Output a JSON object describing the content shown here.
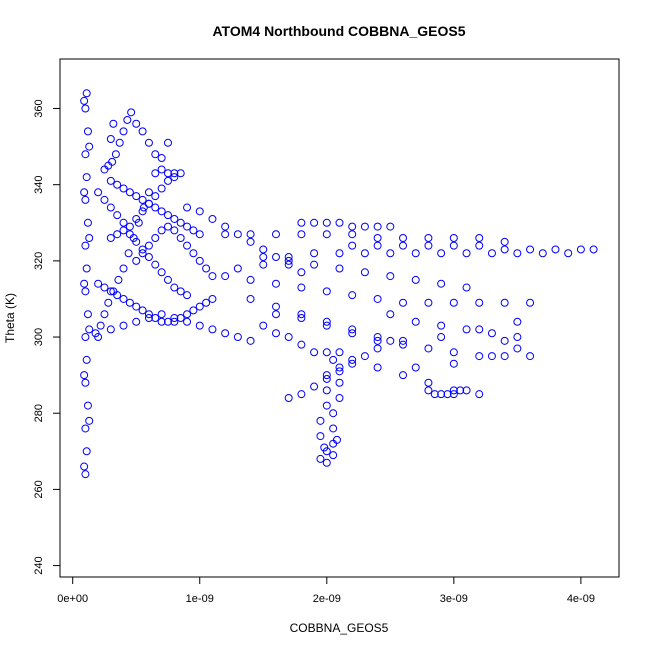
{
  "chart_data": {
    "type": "scatter",
    "title": "ATOM4 Northbound COBBNA_GEOS5",
    "xlabel": "COBBNA_GEOS5",
    "ylabel": "Theta (K)",
    "xlim": [
      -1e-10,
      4.3e-09
    ],
    "ylim": [
      237,
      373
    ],
    "x_ticks": [
      0,
      1e-09,
      2e-09,
      3e-09,
      4e-09
    ],
    "x_tick_labels": [
      "0e+00",
      "1e-09",
      "2e-09",
      "3e-09",
      "4e-09"
    ],
    "y_ticks": [
      240,
      260,
      280,
      300,
      320,
      340,
      360
    ],
    "y_tick_labels": [
      "240",
      "260",
      "280",
      "300",
      "320",
      "340",
      "360"
    ],
    "grid": false,
    "marker": "open-circle",
    "color": "#0000ff",
    "series": [
      {
        "points": [
          [
            1e-10,
            264
          ],
          [
            1.1e-10,
            270
          ],
          [
            1e-10,
            276
          ],
          [
            1.2e-10,
            282
          ],
          [
            1e-10,
            288
          ],
          [
            1.1e-10,
            294
          ],
          [
            1e-10,
            300
          ],
          [
            1.2e-10,
            306
          ],
          [
            1e-10,
            312
          ],
          [
            1.1e-10,
            318
          ],
          [
            1e-10,
            324
          ],
          [
            1.2e-10,
            330
          ],
          [
            1e-10,
            336
          ],
          [
            1.1e-10,
            342
          ],
          [
            1e-10,
            348
          ],
          [
            1.2e-10,
            354
          ],
          [
            1e-10,
            360
          ],
          [
            1.1e-10,
            364
          ],
          [
            9e-11,
            266
          ],
          [
            1.3e-10,
            278
          ],
          [
            9e-11,
            290
          ],
          [
            1.3e-10,
            302
          ],
          [
            9e-11,
            314
          ],
          [
            1.3e-10,
            326
          ],
          [
            9e-11,
            338
          ],
          [
            1.3e-10,
            350
          ],
          [
            9e-11,
            362
          ],
          [
            1.8e-10,
            301
          ],
          [
            2.2e-10,
            303
          ],
          [
            2.5e-10,
            306
          ],
          [
            2.8e-10,
            309
          ],
          [
            3.2e-10,
            312
          ],
          [
            3.6e-10,
            315
          ],
          [
            4e-10,
            318
          ],
          [
            4.4e-10,
            322
          ],
          [
            4.8e-10,
            326
          ],
          [
            5.2e-10,
            330
          ],
          [
            5.6e-10,
            334
          ],
          [
            6e-10,
            338
          ],
          [
            6.5e-10,
            343
          ],
          [
            7e-10,
            347
          ],
          [
            7.5e-10,
            351
          ],
          [
            2.5e-10,
            344
          ],
          [
            2.8e-10,
            345
          ],
          [
            3.1e-10,
            346
          ],
          [
            3.4e-10,
            348
          ],
          [
            3.7e-10,
            351
          ],
          [
            4e-10,
            354
          ],
          [
            4.3e-10,
            357
          ],
          [
            4.6e-10,
            359
          ],
          [
            3e-10,
            352
          ],
          [
            3.2e-10,
            356
          ],
          [
            5e-10,
            356
          ],
          [
            5.5e-10,
            354
          ],
          [
            6e-10,
            351
          ],
          [
            6.5e-10,
            348
          ],
          [
            7e-10,
            344
          ],
          [
            7.5e-10,
            343
          ],
          [
            8e-10,
            343
          ],
          [
            8.5e-10,
            343
          ],
          [
            2e-10,
            338
          ],
          [
            2.5e-10,
            336
          ],
          [
            3e-10,
            334
          ],
          [
            3.5e-10,
            332
          ],
          [
            4e-10,
            330
          ],
          [
            4.5e-10,
            329
          ],
          [
            5e-10,
            331
          ],
          [
            5.5e-10,
            333
          ],
          [
            6e-10,
            335
          ],
          [
            6.5e-10,
            337
          ],
          [
            7e-10,
            339
          ],
          [
            7.5e-10,
            341
          ],
          [
            8e-10,
            342
          ],
          [
            2e-10,
            314
          ],
          [
            2.5e-10,
            313
          ],
          [
            3e-10,
            312
          ],
          [
            3.5e-10,
            311
          ],
          [
            4e-10,
            310
          ],
          [
            4.5e-10,
            309
          ],
          [
            5e-10,
            308
          ],
          [
            5.5e-10,
            307
          ],
          [
            6e-10,
            306
          ],
          [
            6.5e-10,
            305
          ],
          [
            7e-10,
            304
          ],
          [
            7.5e-10,
            304
          ],
          [
            8e-10,
            304
          ],
          [
            8.5e-10,
            305
          ],
          [
            9e-10,
            306
          ],
          [
            9.5e-10,
            307
          ],
          [
            1e-09,
            308
          ],
          [
            1.05e-09,
            309
          ],
          [
            1.1e-09,
            310
          ],
          [
            2e-10,
            300
          ],
          [
            3e-10,
            302
          ],
          [
            4e-10,
            303
          ],
          [
            5e-10,
            304
          ],
          [
            6e-10,
            305
          ],
          [
            7e-10,
            306
          ],
          [
            8e-10,
            305
          ],
          [
            9e-10,
            304
          ],
          [
            1e-09,
            303
          ],
          [
            1.1e-09,
            302
          ],
          [
            1.2e-09,
            301
          ],
          [
            1.3e-09,
            300
          ],
          [
            1.4e-09,
            299
          ],
          [
            5e-10,
            320
          ],
          [
            5.5e-10,
            322
          ],
          [
            6e-10,
            324
          ],
          [
            6.5e-10,
            326
          ],
          [
            7e-10,
            328
          ],
          [
            7.5e-10,
            329
          ],
          [
            8e-10,
            328
          ],
          [
            8.5e-10,
            326
          ],
          [
            9e-10,
            324
          ],
          [
            9.5e-10,
            322
          ],
          [
            1e-09,
            320
          ],
          [
            1.05e-09,
            318
          ],
          [
            1.1e-09,
            316
          ],
          [
            9e-10,
            334
          ],
          [
            1e-09,
            333
          ],
          [
            1.1e-09,
            331
          ],
          [
            1.2e-09,
            329
          ],
          [
            1.3e-09,
            327
          ],
          [
            1.4e-09,
            325
          ],
          [
            1.5e-09,
            323
          ],
          [
            1.6e-09,
            321
          ],
          [
            1.7e-09,
            319
          ],
          [
            1.8e-09,
            317
          ],
          [
            1.2e-09,
            327
          ],
          [
            1.4e-09,
            327
          ],
          [
            1.6e-09,
            327
          ],
          [
            1.8e-09,
            327
          ],
          [
            2e-09,
            327
          ],
          [
            2.2e-09,
            327
          ],
          [
            2.4e-09,
            326
          ],
          [
            2.6e-09,
            326
          ],
          [
            2.8e-09,
            326
          ],
          [
            3e-09,
            326
          ],
          [
            3.2e-09,
            326
          ],
          [
            3.4e-09,
            325
          ],
          [
            1.8e-09,
            330
          ],
          [
            1.9e-09,
            330
          ],
          [
            2e-09,
            330
          ],
          [
            2.1e-09,
            330
          ],
          [
            2.2e-09,
            329
          ],
          [
            2.3e-09,
            329
          ],
          [
            2.4e-09,
            329
          ],
          [
            2.5e-09,
            329
          ],
          [
            2.2e-09,
            324
          ],
          [
            2.4e-09,
            324
          ],
          [
            2.6e-09,
            324
          ],
          [
            2.8e-09,
            324
          ],
          [
            3e-09,
            324
          ],
          [
            3.2e-09,
            324
          ],
          [
            3.4e-09,
            323
          ],
          [
            3.6e-09,
            323
          ],
          [
            3.8e-09,
            323
          ],
          [
            4e-09,
            323
          ],
          [
            4.1e-09,
            323
          ],
          [
            1.5e-09,
            321
          ],
          [
            1.7e-09,
            321
          ],
          [
            1.9e-09,
            322
          ],
          [
            2.1e-09,
            322
          ],
          [
            2.3e-09,
            322
          ],
          [
            2.5e-09,
            322
          ],
          [
            2.7e-09,
            322
          ],
          [
            2.9e-09,
            322
          ],
          [
            3.1e-09,
            322
          ],
          [
            3.3e-09,
            322
          ],
          [
            3.5e-09,
            322
          ],
          [
            3.7e-09,
            322
          ],
          [
            3.9e-09,
            322
          ],
          [
            1.2e-09,
            316
          ],
          [
            1.4e-09,
            315
          ],
          [
            1.6e-09,
            314
          ],
          [
            1.8e-09,
            313
          ],
          [
            2e-09,
            312
          ],
          [
            2.2e-09,
            311
          ],
          [
            2.4e-09,
            310
          ],
          [
            2.6e-09,
            309
          ],
          [
            2.8e-09,
            309
          ],
          [
            3e-09,
            309
          ],
          [
            3.2e-09,
            309
          ],
          [
            3.4e-09,
            309
          ],
          [
            3.6e-09,
            309
          ],
          [
            1.3e-09,
            318
          ],
          [
            1.5e-09,
            319
          ],
          [
            1.7e-09,
            320
          ],
          [
            1.9e-09,
            319
          ],
          [
            2.1e-09,
            318
          ],
          [
            2.3e-09,
            317
          ],
          [
            2.5e-09,
            316
          ],
          [
            2.7e-09,
            315
          ],
          [
            2.9e-09,
            314
          ],
          [
            3.1e-09,
            313
          ],
          [
            1.4e-09,
            310
          ],
          [
            1.6e-09,
            308
          ],
          [
            1.8e-09,
            306
          ],
          [
            2e-09,
            304
          ],
          [
            2.2e-09,
            302
          ],
          [
            2.4e-09,
            300
          ],
          [
            2.6e-09,
            299
          ],
          [
            2.8e-09,
            297
          ],
          [
            3e-09,
            296
          ],
          [
            3.2e-09,
            295
          ],
          [
            3.4e-09,
            295
          ],
          [
            3.6e-09,
            295
          ],
          [
            2e-09,
            296
          ],
          [
            2.2e-09,
            294
          ],
          [
            2.4e-09,
            292
          ],
          [
            2.6e-09,
            290
          ],
          [
            2.8e-09,
            288
          ],
          [
            3e-09,
            286
          ],
          [
            3.2e-09,
            285
          ],
          [
            2.8e-09,
            286
          ],
          [
            2.85e-09,
            285
          ],
          [
            2.9e-09,
            285
          ],
          [
            2.95e-09,
            285
          ],
          [
            3e-09,
            285
          ],
          [
            3.05e-09,
            286
          ],
          [
            3.1e-09,
            286
          ],
          [
            1.7e-09,
            284
          ],
          [
            1.8e-09,
            285
          ],
          [
            1.9e-09,
            287
          ],
          [
            2e-09,
            289
          ],
          [
            2.1e-09,
            291
          ],
          [
            2.2e-09,
            293
          ],
          [
            2.3e-09,
            295
          ],
          [
            2.4e-09,
            297
          ],
          [
            2.5e-09,
            299
          ],
          [
            1.95e-09,
            268
          ],
          [
            2e-09,
            270
          ],
          [
            2.05e-09,
            272
          ],
          [
            1.95e-09,
            274
          ],
          [
            2.05e-09,
            276
          ],
          [
            1.95e-09,
            278
          ],
          [
            2.05e-09,
            280
          ],
          [
            2e-09,
            282
          ],
          [
            2.1e-09,
            284
          ],
          [
            2e-09,
            286
          ],
          [
            2.1e-09,
            288
          ],
          [
            2e-09,
            290
          ],
          [
            2.1e-09,
            292
          ],
          [
            2.05e-09,
            294
          ],
          [
            2.1e-09,
            296
          ],
          [
            2e-09,
            267
          ],
          [
            2.05e-09,
            269
          ],
          [
            1.98e-09,
            271
          ],
          [
            2.08e-09,
            273
          ],
          [
            2.5e-09,
            306
          ],
          [
            2.7e-09,
            304
          ],
          [
            2.9e-09,
            303
          ],
          [
            3.1e-09,
            302
          ],
          [
            3.3e-09,
            301
          ],
          [
            3.5e-09,
            300
          ],
          [
            2.6e-09,
            298
          ],
          [
            2.9e-09,
            300
          ],
          [
            3.2e-09,
            302
          ],
          [
            3.5e-09,
            304
          ],
          [
            2.7e-09,
            292
          ],
          [
            3e-09,
            293
          ],
          [
            3.3e-09,
            295
          ],
          [
            3.4e-09,
            299
          ],
          [
            3.5e-09,
            297
          ],
          [
            1.5e-09,
            303
          ],
          [
            1.6e-09,
            301
          ],
          [
            1.7e-09,
            300
          ],
          [
            1.8e-09,
            298
          ],
          [
            1.9e-09,
            296
          ],
          [
            1.6e-09,
            306
          ],
          [
            1.8e-09,
            305
          ],
          [
            2e-09,
            303
          ],
          [
            2.2e-09,
            301
          ],
          [
            2.4e-09,
            299
          ],
          [
            3e-10,
            341
          ],
          [
            3.5e-10,
            340
          ],
          [
            4e-10,
            339
          ],
          [
            4.5e-10,
            338
          ],
          [
            5e-10,
            337
          ],
          [
            5.5e-10,
            336
          ],
          [
            6e-10,
            335
          ],
          [
            6.5e-10,
            334
          ],
          [
            7e-10,
            333
          ],
          [
            7.5e-10,
            332
          ],
          [
            8e-10,
            331
          ],
          [
            8.5e-10,
            330
          ],
          [
            9e-10,
            329
          ],
          [
            9.5e-10,
            328
          ],
          [
            1e-09,
            327
          ],
          [
            3e-10,
            326
          ],
          [
            3.5e-10,
            327
          ],
          [
            4e-10,
            328
          ],
          [
            4.5e-10,
            327
          ],
          [
            5e-10,
            325
          ],
          [
            5.5e-10,
            323
          ],
          [
            6e-10,
            321
          ],
          [
            6.5e-10,
            319
          ],
          [
            7e-10,
            317
          ],
          [
            7.5e-10,
            315
          ],
          [
            8e-10,
            313
          ],
          [
            8.5e-10,
            312
          ],
          [
            9e-10,
            311
          ]
        ]
      }
    ]
  }
}
